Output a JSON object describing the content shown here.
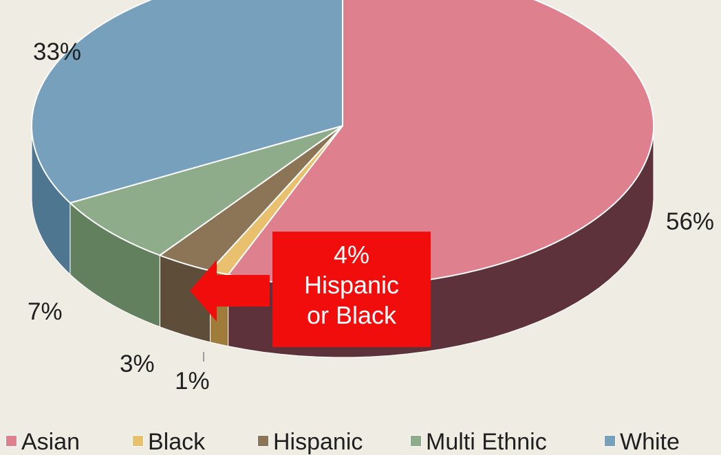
{
  "chart_data": {
    "type": "pie",
    "title": "",
    "slices": [
      {
        "name": "Asian",
        "value": 56,
        "label": "56%",
        "color": "#de808e",
        "side_color": "#5e323b"
      },
      {
        "name": "Black",
        "value": 1,
        "label": "1%",
        "color": "#e9c06e",
        "side_color": "#a07c3a"
      },
      {
        "name": "Hispanic",
        "value": 3,
        "label": "3%",
        "color": "#8c7556",
        "side_color": "#5e4d38"
      },
      {
        "name": "Multi Ethnic",
        "value": 7,
        "label": "7%",
        "color": "#8eac8a",
        "side_color": "#62805e"
      },
      {
        "name": "White",
        "value": 33,
        "label": "33%",
        "color": "#76a0bc",
        "side_color": "#4f7690"
      }
    ],
    "legend_position": "bottom",
    "three_d": true
  },
  "callout": {
    "line1": "4%",
    "line2": "Hispanic",
    "line3": "or Black",
    "color": "#f20d0d"
  }
}
